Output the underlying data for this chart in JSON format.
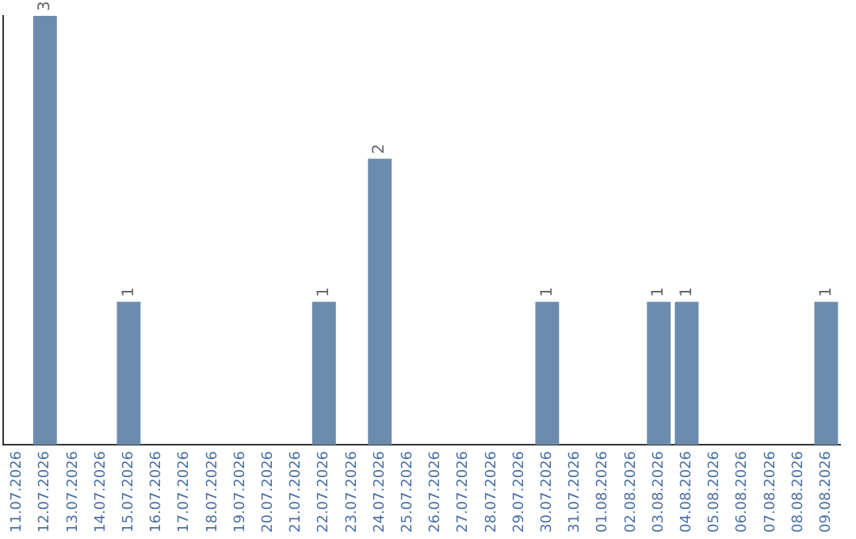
{
  "chart_data": {
    "type": "bar",
    "categories": [
      "11.07.2026",
      "12.07.2026",
      "13.07.2026",
      "14.07.2026",
      "15.07.2026",
      "16.07.2026",
      "17.07.2026",
      "18.07.2026",
      "19.07.2026",
      "20.07.2026",
      "21.07.2026",
      "22.07.2026",
      "23.07.2026",
      "24.07.2026",
      "25.07.2026",
      "26.07.2026",
      "27.07.2026",
      "28.07.2026",
      "29.07.2026",
      "30.07.2026",
      "31.07.2026",
      "01.08.2026",
      "02.08.2026",
      "03.08.2026",
      "04.08.2026",
      "05.08.2026",
      "06.08.2026",
      "07.08.2026",
      "08.08.2026",
      "09.08.2026"
    ],
    "values": [
      0,
      3,
      0,
      0,
      1,
      0,
      0,
      0,
      0,
      0,
      0,
      1,
      0,
      2,
      0,
      0,
      0,
      0,
      0,
      1,
      0,
      0,
      0,
      1,
      1,
      0,
      0,
      0,
      0,
      1
    ],
    "value_labels": [
      null,
      "3",
      null,
      null,
      "1",
      null,
      null,
      null,
      null,
      null,
      null,
      "1",
      null,
      "2",
      null,
      null,
      null,
      null,
      null,
      "1",
      null,
      null,
      null,
      "1",
      "1",
      null,
      null,
      null,
      null,
      "1"
    ],
    "color": "#6b8cad",
    "ylim": [
      0,
      3
    ],
    "grid": false,
    "legend": false,
    "tick_labels": "x"
  }
}
